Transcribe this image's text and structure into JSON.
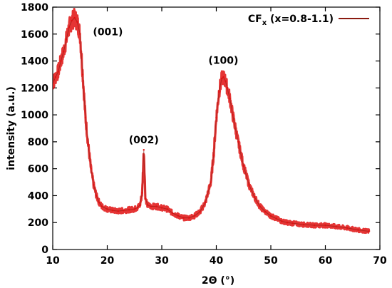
{
  "chart_data": {
    "type": "line",
    "title": "",
    "xlabel": "2Θ (°)",
    "ylabel": "intensity (a.u.)",
    "xlim": [
      10,
      70
    ],
    "ylim": [
      0,
      1800
    ],
    "xticks": [
      10,
      20,
      30,
      40,
      50,
      60,
      70
    ],
    "yticks": [
      0,
      200,
      400,
      600,
      800,
      1000,
      1200,
      1400,
      1600,
      1800
    ],
    "grid": false,
    "legend_position": "top-right",
    "series": [
      {
        "name": "CF",
        "name_subscript": "x",
        "name_suffix": " (x=0.8-1.1)",
        "color": "#e01010",
        "line_color": "#8b1a10",
        "x": [
          10.0,
          10.5,
          11.0,
          11.5,
          12.0,
          12.5,
          13.0,
          13.5,
          14.0,
          14.5,
          15.0,
          15.5,
          16.0,
          16.5,
          17.0,
          17.5,
          18.0,
          18.5,
          19.0,
          20.0,
          21.0,
          22.0,
          23.0,
          24.0,
          25.0,
          25.5,
          26.0,
          26.4,
          26.7,
          27.0,
          27.4,
          28.0,
          29.0,
          30.0,
          31.0,
          32.0,
          33.0,
          34.0,
          35.0,
          36.0,
          37.0,
          38.0,
          39.0,
          39.5,
          40.0,
          40.5,
          41.0,
          41.3,
          41.7,
          42.0,
          42.5,
          43.0,
          44.0,
          45.0,
          46.0,
          47.0,
          48.0,
          49.0,
          50.0,
          51.0,
          52.0,
          53.0,
          54.0,
          56.0,
          58.0,
          60.0,
          62.0,
          64.0,
          66.0,
          68.0
        ],
        "y": [
          1230,
          1280,
          1320,
          1400,
          1470,
          1560,
          1650,
          1700,
          1720,
          1690,
          1600,
          1300,
          980,
          780,
          600,
          480,
          400,
          350,
          320,
          300,
          290,
          285,
          290,
          295,
          300,
          310,
          330,
          420,
          740,
          380,
          330,
          320,
          320,
          310,
          300,
          270,
          250,
          235,
          235,
          250,
          280,
          350,
          500,
          700,
          980,
          1170,
          1270,
          1280,
          1250,
          1200,
          1120,
          1000,
          800,
          620,
          480,
          390,
          320,
          280,
          250,
          230,
          210,
          200,
          195,
          185,
          180,
          180,
          170,
          160,
          145,
          135
        ]
      }
    ],
    "annotations": [
      {
        "text": "(001)",
        "x": 14.5,
        "y": 1590
      },
      {
        "text": "(002)",
        "x": 26.7,
        "y": 790
      },
      {
        "text": "(100)",
        "x": 41.3,
        "y": 1380
      }
    ]
  }
}
